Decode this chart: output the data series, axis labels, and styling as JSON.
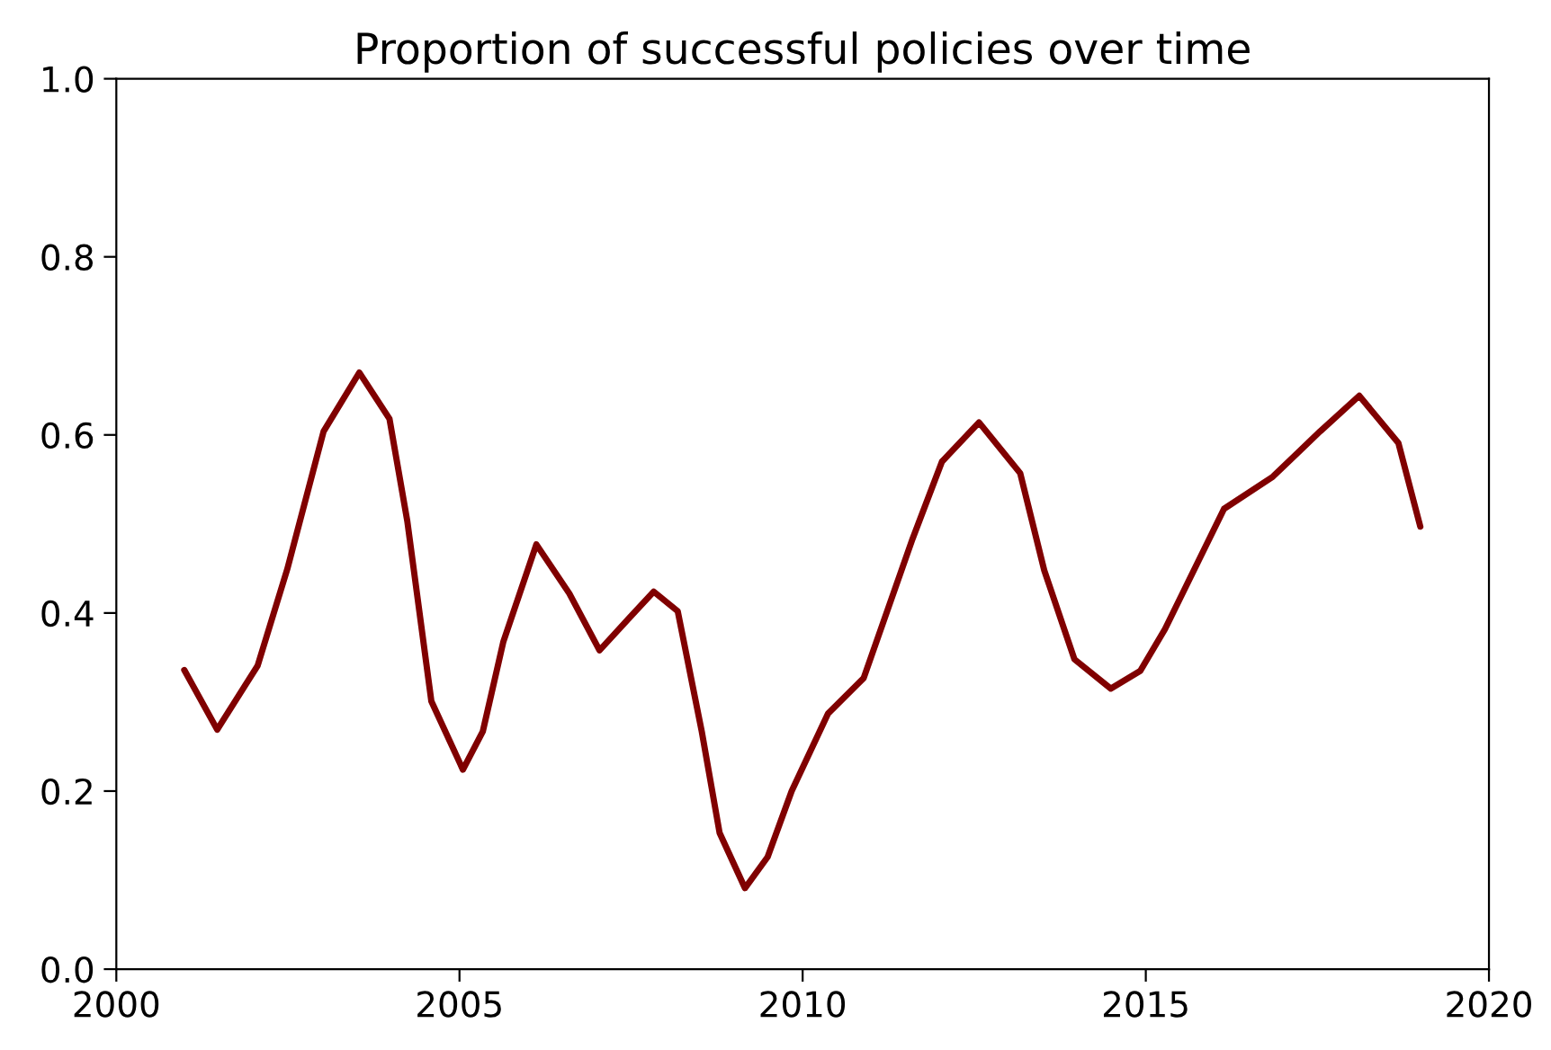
{
  "chart_data": {
    "type": "line",
    "title": "Proportion of successful policies over time",
    "x": [
      2000.99,
      2001.47,
      2002.06,
      2002.49,
      2003.02,
      2003.54,
      2003.98,
      2004.24,
      2004.59,
      2005.05,
      2005.34,
      2005.64,
      2006.12,
      2006.6,
      2007.04,
      2007.48,
      2007.83,
      2008.18,
      2008.53,
      2008.79,
      2009.16,
      2009.49,
      2009.84,
      2010.37,
      2010.89,
      2011.6,
      2012.03,
      2012.57,
      2013.17,
      2013.52,
      2013.96,
      2014.49,
      2014.92,
      2015.28,
      2016.14,
      2016.85,
      2017.54,
      2018.11,
      2018.68,
      2019.0
    ],
    "series": [
      {
        "color": "#800000",
        "values": [
          0.336,
          0.269,
          0.341,
          0.449,
          0.604,
          0.67,
          0.618,
          0.503,
          0.301,
          0.224,
          0.267,
          0.368,
          0.477,
          0.422,
          0.358,
          0.395,
          0.424,
          0.402,
          0.267,
          0.153,
          0.091,
          0.126,
          0.2,
          0.287,
          0.327,
          0.483,
          0.57,
          0.614,
          0.557,
          0.448,
          0.348,
          0.315,
          0.335,
          0.382,
          0.517,
          0.553,
          0.604,
          0.644,
          0.591,
          0.497
        ]
      }
    ],
    "xlim": [
      2000,
      2020
    ],
    "xticks": [
      2000,
      2005,
      2010,
      2015,
      2020
    ],
    "ylim": [
      0.0,
      1.0
    ],
    "yticks": [
      {
        "value": 0.0,
        "label": "0.0"
      },
      {
        "value": 0.2,
        "label": "0.2"
      },
      {
        "value": 0.4,
        "label": "0.4"
      },
      {
        "value": 0.6,
        "label": "0.6"
      },
      {
        "value": 0.8,
        "label": "0.8"
      },
      {
        "value": 1.0,
        "label": "1.0"
      }
    ],
    "grid": false,
    "legend": false,
    "marker": "none",
    "line_style": "solid"
  }
}
